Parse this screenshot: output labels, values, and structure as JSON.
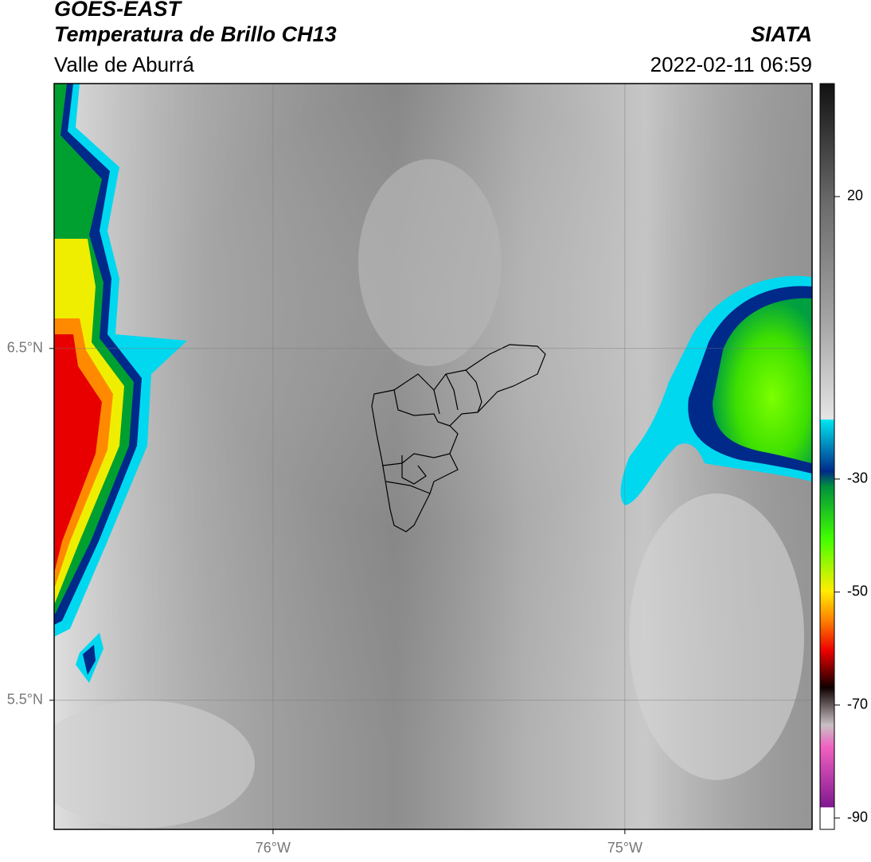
{
  "header": {
    "satellite": "GOES-EAST",
    "product": "Temperatura de Brillo CH13",
    "region": "Valle de Aburrá",
    "source": "SIATA",
    "timestamp": "2022-02-11 06:59"
  },
  "map": {
    "xlim": [
      -76.622,
      -74.468
    ],
    "ylim": [
      5.133,
      7.253
    ],
    "xticks": [
      {
        "value": -76,
        "label": "76°W"
      },
      {
        "value": -75,
        "label": "75°W"
      }
    ],
    "yticks": [
      {
        "value": 6.5,
        "label": "6.5°N"
      },
      {
        "value": 5.5,
        "label": "5.5°N"
      }
    ],
    "grid": true
  },
  "colorbar": {
    "lim": [
      -92,
      40
    ],
    "ticks": [
      20,
      -30,
      -50,
      -70,
      -90
    ]
  }
}
